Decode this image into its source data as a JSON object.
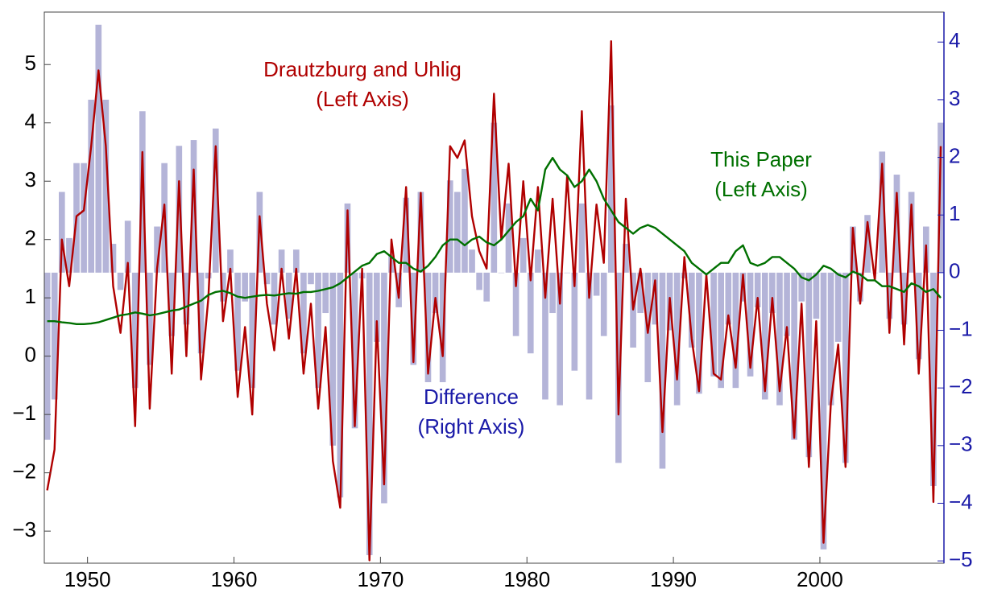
{
  "chart_data": {
    "type": "combo",
    "x": [
      1947.25,
      1947.75,
      1948.25,
      1948.75,
      1949.25,
      1949.75,
      1950.25,
      1950.75,
      1951.25,
      1951.75,
      1952.25,
      1952.75,
      1953.25,
      1953.75,
      1954.25,
      1954.75,
      1955.25,
      1955.75,
      1956.25,
      1956.75,
      1957.25,
      1957.75,
      1958.25,
      1958.75,
      1959.25,
      1959.75,
      1960.25,
      1960.75,
      1961.25,
      1961.75,
      1962.25,
      1962.75,
      1963.25,
      1963.75,
      1964.25,
      1964.75,
      1965.25,
      1965.75,
      1966.25,
      1966.75,
      1967.25,
      1967.75,
      1968.25,
      1968.75,
      1969.25,
      1969.75,
      1970.25,
      1970.75,
      1971.25,
      1971.75,
      1972.25,
      1972.75,
      1973.25,
      1973.75,
      1974.25,
      1974.75,
      1975.25,
      1975.75,
      1976.25,
      1976.75,
      1977.25,
      1977.75,
      1978.25,
      1978.75,
      1979.25,
      1979.75,
      1980.25,
      1980.75,
      1981.25,
      1981.75,
      1982.25,
      1982.75,
      1983.25,
      1983.75,
      1984.25,
      1984.75,
      1985.25,
      1985.75,
      1986.25,
      1986.75,
      1987.25,
      1987.75,
      1988.25,
      1988.75,
      1989.25,
      1989.75,
      1990.25,
      1990.75,
      1991.25,
      1991.75,
      1992.25,
      1992.75,
      1993.25,
      1993.75,
      1994.25,
      1994.75,
      1995.25,
      1995.75,
      1996.25,
      1996.75,
      1997.25,
      1997.75,
      1998.25,
      1998.75,
      1999.25,
      1999.75,
      2000.25,
      2000.75,
      2001.25,
      2001.75,
      2002.25,
      2002.75,
      2003.25,
      2003.75,
      2004.25,
      2004.75,
      2005.25,
      2005.75,
      2006.25,
      2006.75,
      2007.25,
      2007.75,
      2008.25
    ],
    "series": [
      {
        "name": "Difference",
        "axis_note": "(Right Axis)",
        "type": "bar",
        "axis": "y2",
        "color": "#b4b4d8",
        "label_color": "#1a1aa8",
        "values": [
          -2.9,
          -2.2,
          1.4,
          0.6,
          1.9,
          1.9,
          3.0,
          4.3,
          3.0,
          0.5,
          -0.3,
          0.9,
          -2.0,
          2.8,
          -1.6,
          0.8,
          1.9,
          -1.1,
          2.2,
          -0.9,
          2.3,
          -1.4,
          -0.1,
          2.5,
          -0.5,
          0.4,
          -1.7,
          -0.5,
          -2.0,
          1.4,
          -0.2,
          -0.9,
          0.4,
          -0.8,
          0.4,
          -1.4,
          -0.2,
          -2.0,
          -0.7,
          -3.0,
          -3.9,
          1.2,
          -2.7,
          -0.1,
          -4.9,
          -1.2,
          -4.0,
          0.3,
          -0.6,
          1.3,
          -1.6,
          1.4,
          -1.9,
          -0.7,
          -1.9,
          1.6,
          1.4,
          1.8,
          0.4,
          -0.3,
          -0.5,
          2.6,
          0.0,
          1.2,
          -1.1,
          0.6,
          -1.4,
          0.4,
          -2.2,
          -0.7,
          -2.3,
          0.0,
          -1.7,
          1.2,
          -2.2,
          -0.4,
          -1.1,
          2.9,
          -3.3,
          0.5,
          -1.3,
          -0.7,
          -1.9,
          -0.9,
          -3.4,
          -1.0,
          -2.3,
          -0.1,
          -1.3,
          -2.1,
          0.0,
          -1.8,
          -2.0,
          -0.9,
          -2.0,
          -0.5,
          -1.8,
          -0.6,
          -2.2,
          -0.7,
          -2.3,
          -1.1,
          -2.9,
          -0.5,
          -3.2,
          -0.8,
          -4.8,
          -2.3,
          -1.2,
          -3.3,
          0.8,
          -0.5,
          1.0,
          0.0,
          2.1,
          -0.8,
          1.7,
          -0.9,
          1.4,
          -1.5,
          0.8,
          -3.7,
          2.6
        ]
      },
      {
        "name": "Drautzburg and Uhlig",
        "axis_note": "(Left Axis)",
        "type": "line",
        "color": "#b00000",
        "values": [
          -2.3,
          -1.6,
          2.0,
          1.2,
          2.4,
          2.5,
          3.6,
          4.9,
          3.6,
          1.2,
          0.4,
          1.6,
          -1.2,
          3.5,
          -0.9,
          1.5,
          2.6,
          -0.3,
          3.0,
          0.0,
          3.2,
          -0.4,
          1.0,
          3.6,
          0.6,
          1.5,
          -0.7,
          0.5,
          -1.0,
          2.4,
          0.9,
          0.1,
          1.5,
          0.3,
          1.5,
          -0.3,
          0.9,
          -0.9,
          0.5,
          -1.8,
          -2.6,
          2.5,
          -1.2,
          1.5,
          -3.5,
          0.6,
          -2.2,
          2.0,
          1.0,
          2.9,
          -0.1,
          2.8,
          -0.3,
          1.0,
          0.0,
          3.6,
          3.4,
          3.7,
          2.4,
          1.8,
          1.5,
          4.5,
          2.0,
          3.3,
          1.2,
          3.0,
          1.3,
          2.9,
          1.0,
          2.7,
          0.9,
          3.1,
          1.2,
          4.2,
          1.0,
          2.6,
          1.6,
          5.4,
          -1.0,
          2.7,
          0.8,
          1.5,
          0.4,
          1.3,
          -1.3,
          1.0,
          -0.4,
          1.7,
          0.3,
          -0.6,
          1.4,
          -0.3,
          -0.4,
          0.7,
          -0.2,
          1.4,
          -0.2,
          1.0,
          -0.6,
          1.0,
          -0.6,
          0.5,
          -1.4,
          0.9,
          -1.9,
          0.6,
          -3.2,
          -0.8,
          0.2,
          -1.9,
          2.2,
          0.9,
          2.3,
          1.3,
          3.3,
          0.4,
          2.8,
          0.2,
          2.6,
          -0.3,
          1.9,
          -2.5,
          3.6
        ]
      },
      {
        "name": "This Paper",
        "axis_note": "(Left Axis)",
        "type": "line",
        "color": "#007000",
        "values": [
          0.6,
          0.6,
          0.58,
          0.57,
          0.55,
          0.55,
          0.56,
          0.58,
          0.62,
          0.66,
          0.7,
          0.72,
          0.75,
          0.73,
          0.7,
          0.72,
          0.75,
          0.78,
          0.8,
          0.85,
          0.9,
          0.95,
          1.05,
          1.1,
          1.12,
          1.08,
          1.02,
          1.0,
          1.02,
          1.04,
          1.05,
          1.04,
          1.06,
          1.08,
          1.07,
          1.1,
          1.1,
          1.12,
          1.15,
          1.18,
          1.25,
          1.35,
          1.45,
          1.55,
          1.6,
          1.75,
          1.8,
          1.7,
          1.6,
          1.6,
          1.5,
          1.45,
          1.55,
          1.7,
          1.9,
          2.0,
          2.0,
          1.9,
          2.0,
          2.05,
          1.95,
          1.9,
          2.0,
          2.15,
          2.3,
          2.4,
          2.7,
          2.5,
          3.2,
          3.4,
          3.2,
          3.1,
          2.9,
          3.0,
          3.2,
          3.0,
          2.7,
          2.5,
          2.3,
          2.2,
          2.1,
          2.2,
          2.25,
          2.2,
          2.1,
          2.0,
          1.9,
          1.8,
          1.6,
          1.5,
          1.4,
          1.5,
          1.6,
          1.6,
          1.8,
          1.9,
          1.6,
          1.55,
          1.6,
          1.7,
          1.7,
          1.6,
          1.5,
          1.35,
          1.3,
          1.4,
          1.55,
          1.5,
          1.4,
          1.35,
          1.45,
          1.4,
          1.3,
          1.3,
          1.2,
          1.2,
          1.15,
          1.1,
          1.25,
          1.2,
          1.1,
          1.15,
          1.0
        ]
      }
    ],
    "xlim": [
      1947.05,
      2008.47
    ],
    "xticks": [
      1950,
      1960,
      1970,
      1980,
      1990,
      2000
    ],
    "ylim": [
      -3.55,
      5.9
    ],
    "yticks": [
      {
        "value": -3,
        "label": "−3"
      },
      {
        "value": -2,
        "label": "−2"
      },
      {
        "value": -1,
        "label": "−1"
      },
      0,
      1,
      2,
      3,
      4,
      5
    ],
    "y2lim": [
      -5.04,
      4.52
    ],
    "y2ticks": [
      {
        "value": -5,
        "label": "−5"
      },
      {
        "value": -4,
        "label": "−4"
      },
      {
        "value": -3,
        "label": "−3"
      },
      {
        "value": -2,
        "label": "−2"
      },
      {
        "value": -1,
        "label": "−1"
      },
      0,
      1,
      2,
      3,
      4
    ],
    "y2_color": "#1a1aa8",
    "grid": false
  }
}
